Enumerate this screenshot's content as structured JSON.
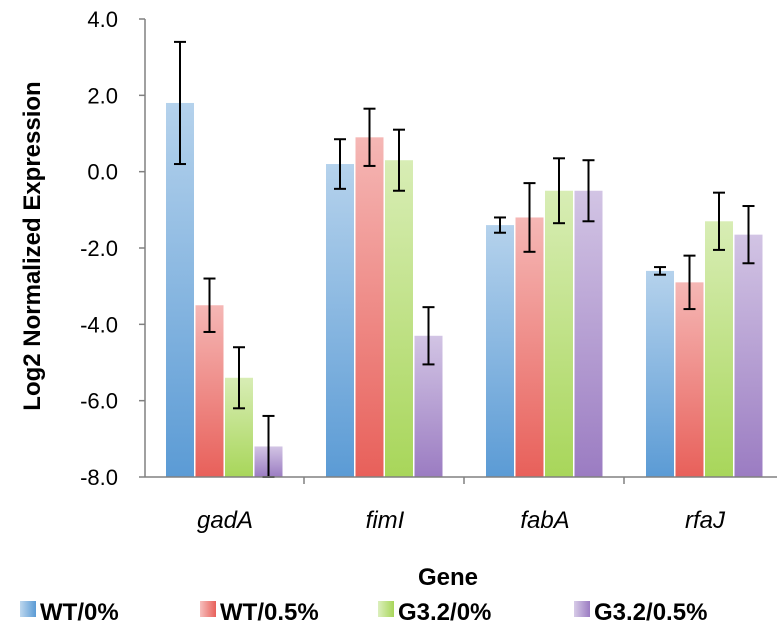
{
  "chart_data": {
    "type": "bar",
    "title": "",
    "xlabel": "Gene",
    "ylabel": "Log2 Normalized Expression",
    "ylim": [
      -8,
      4
    ],
    "y_ticks": [
      "4.0",
      "2.0",
      "0.0",
      "-2.0",
      "-4.0",
      "-6.0",
      "-8.0"
    ],
    "y_tick_values": [
      4,
      2,
      0,
      -2,
      -4,
      -6,
      -8
    ],
    "categories": [
      "gadA",
      "fimI",
      "fabA",
      "rfaJ"
    ],
    "series": [
      {
        "name": "WT/0%",
        "color": "#5b9bd5",
        "values": [
          1.8,
          0.2,
          -1.4,
          -2.6
        ],
        "errors": [
          1.6,
          0.65,
          0.2,
          0.1
        ]
      },
      {
        "name": "WT/0.5%",
        "color": "#e8605a",
        "values": [
          -3.5,
          0.9,
          -1.2,
          -2.9
        ],
        "errors": [
          0.7,
          0.75,
          0.9,
          0.7
        ]
      },
      {
        "name": "G3.2/0%",
        "color": "#a8d65a",
        "values": [
          -5.4,
          0.3,
          -0.5,
          -1.3
        ],
        "errors": [
          0.8,
          0.8,
          0.85,
          0.75
        ]
      },
      {
        "name": "G3.2/0.5%",
        "color": "#9b7cc2",
        "values": [
          -7.2,
          -4.3,
          -0.5,
          -1.65
        ],
        "errors": [
          0.8,
          0.75,
          0.8,
          0.75
        ]
      }
    ],
    "grid": false,
    "legend_position": "bottom",
    "baseline": -8
  }
}
